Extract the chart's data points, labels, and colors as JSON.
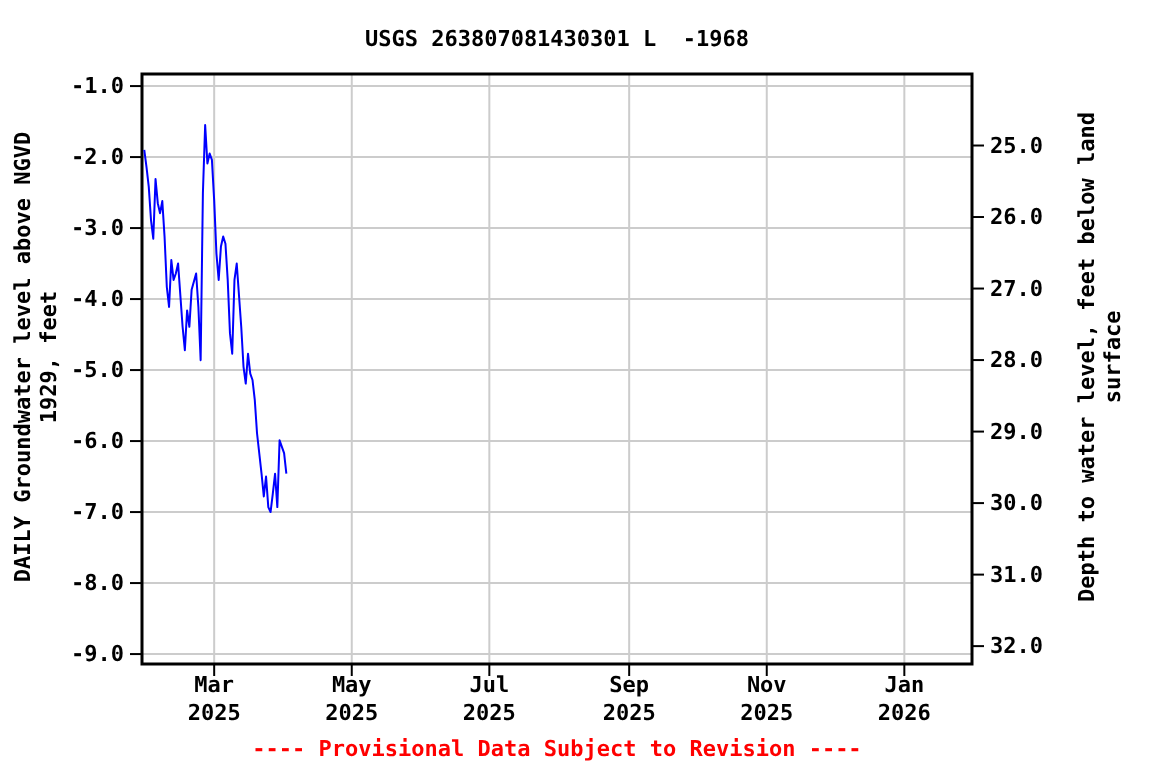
{
  "chart_data": {
    "type": "line",
    "title": "USGS 263807081430301 L  -1968",
    "ylabel": "DAILY Groundwater level above NGVD 1929, feet",
    "y2label": "Depth to water level, feet below land surface",
    "annotations": [
      "---- Provisional Data Subject to Revision ----"
    ],
    "x": [
      "2025-01-29",
      "2025-01-30",
      "2025-01-31",
      "2025-02-01",
      "2025-02-02",
      "2025-02-03",
      "2025-02-04",
      "2025-02-05",
      "2025-02-06",
      "2025-02-07",
      "2025-02-08",
      "2025-02-09",
      "2025-02-10",
      "2025-02-11",
      "2025-02-12",
      "2025-02-13",
      "2025-02-15",
      "2025-02-16",
      "2025-02-17",
      "2025-02-18",
      "2025-02-19",
      "2025-02-21",
      "2025-02-22",
      "2025-02-23",
      "2025-02-24",
      "2025-02-25",
      "2025-02-26",
      "2025-02-27",
      "2025-02-28",
      "2025-03-01",
      "2025-03-02",
      "2025-03-03",
      "2025-03-04",
      "2025-03-05",
      "2025-03-06",
      "2025-03-07",
      "2025-03-08",
      "2025-03-09",
      "2025-03-10",
      "2025-03-11",
      "2025-03-13",
      "2025-03-14",
      "2025-03-15",
      "2025-03-16",
      "2025-03-17",
      "2025-03-18",
      "2025-03-19",
      "2025-03-20",
      "2025-03-22",
      "2025-03-23",
      "2025-03-24",
      "2025-03-25",
      "2025-03-26",
      "2025-03-27",
      "2025-03-28",
      "2025-03-29",
      "2025-03-30",
      "2025-04-01",
      "2025-04-02"
    ],
    "series": [
      {
        "color": "#0000ff",
        "values": [
          -1.9,
          -2.14,
          -2.42,
          -2.89,
          -3.15,
          -2.31,
          -2.65,
          -2.79,
          -2.62,
          -3.12,
          -3.83,
          -4.11,
          -3.45,
          -3.73,
          -3.64,
          -3.5,
          -4.39,
          -4.72,
          -4.16,
          -4.39,
          -3.87,
          -3.64,
          -4.11,
          -4.86,
          -2.51,
          -1.55,
          -2.09,
          -1.95,
          -2.04,
          -2.61,
          -3.36,
          -3.73,
          -3.26,
          -3.12,
          -3.22,
          -3.73,
          -4.48,
          -4.77,
          -3.73,
          -3.5,
          -4.39,
          -4.95,
          -5.19,
          -4.77,
          -5.05,
          -5.14,
          -5.42,
          -5.89,
          -6.46,
          -6.78,
          -6.5,
          -6.93,
          -7.0,
          -6.74,
          -6.46,
          -6.93,
          -5.99,
          -6.17,
          -6.46
        ]
      }
    ],
    "xlim": [
      "2025-01-28",
      "2026-01-31"
    ],
    "xticks": [
      {
        "value": "2025-03-01",
        "label": "Mar 2025"
      },
      {
        "value": "2025-05-01",
        "label": "May 2025"
      },
      {
        "value": "2025-07-01",
        "label": "Jul 2025"
      },
      {
        "value": "2025-09-01",
        "label": "Sep 2025"
      },
      {
        "value": "2025-11-01",
        "label": "Nov 2025"
      },
      {
        "value": "2026-01-01",
        "label": "Jan 2026"
      }
    ],
    "ylim": [
      -9.14,
      -0.83
    ],
    "yticks": [
      {
        "value": -1,
        "label": "-1.0"
      },
      {
        "value": -2,
        "label": "-2.0"
      },
      {
        "value": -3,
        "label": "-3.0"
      },
      {
        "value": -4,
        "label": "-4.0"
      },
      {
        "value": -5,
        "label": "-5.0"
      },
      {
        "value": -6,
        "label": "-6.0"
      },
      {
        "value": -7,
        "label": "-7.0"
      },
      {
        "value": -8,
        "label": "-8.0"
      },
      {
        "value": -9,
        "label": "-9.0"
      }
    ],
    "y2lim": [
      32.25,
      24.0
    ],
    "y2ticks": [
      {
        "value": 25,
        "label": "25.0"
      },
      {
        "value": 26,
        "label": "26.0"
      },
      {
        "value": 27,
        "label": "27.0"
      },
      {
        "value": 28,
        "label": "28.0"
      },
      {
        "value": 29,
        "label": "29.0"
      },
      {
        "value": 30,
        "label": "30.0"
      },
      {
        "value": 31,
        "label": "31.0"
      },
      {
        "value": 32,
        "label": "32.0"
      }
    ],
    "grid": true,
    "marker": "none",
    "line_style": "solid"
  }
}
